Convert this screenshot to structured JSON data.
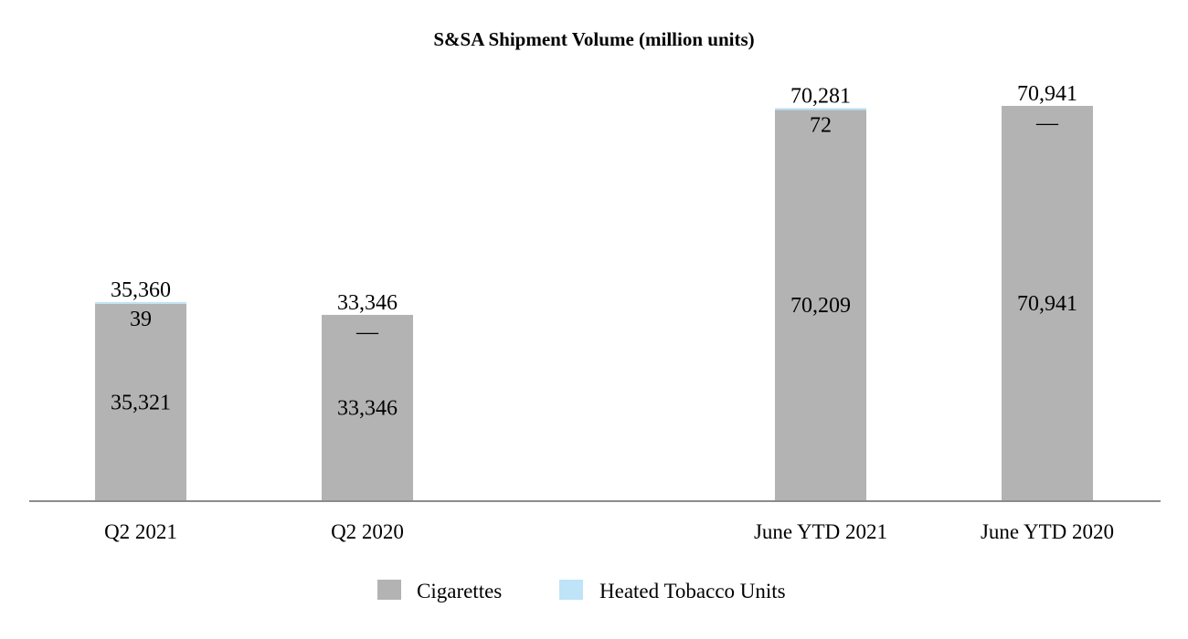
{
  "chart_data": {
    "type": "bar",
    "stacked": true,
    "title": "S&SA Shipment Volume (million units)",
    "xlabel": "",
    "ylabel": "",
    "categories": [
      "Q2 2021",
      "Q2 2020",
      "June YTD 2021",
      "June YTD 2020"
    ],
    "series": [
      {
        "name": "Cigarettes",
        "color": "#b3b3b3",
        "values": [
          35321,
          33346,
          70209,
          70941
        ],
        "labels": [
          "35,321",
          "33,346",
          "70,209",
          "70,941"
        ]
      },
      {
        "name": "Heated Tobacco Units",
        "color": "#bfe3f7",
        "values": [
          39,
          0,
          72,
          0
        ],
        "labels": [
          "39",
          "—",
          "72",
          "—"
        ]
      }
    ],
    "totals": [
      "35,360",
      "33,346",
      "70,281",
      "70,941"
    ],
    "ylim": [
      0,
      80000
    ],
    "grid": false,
    "legend": "bottom-center"
  }
}
